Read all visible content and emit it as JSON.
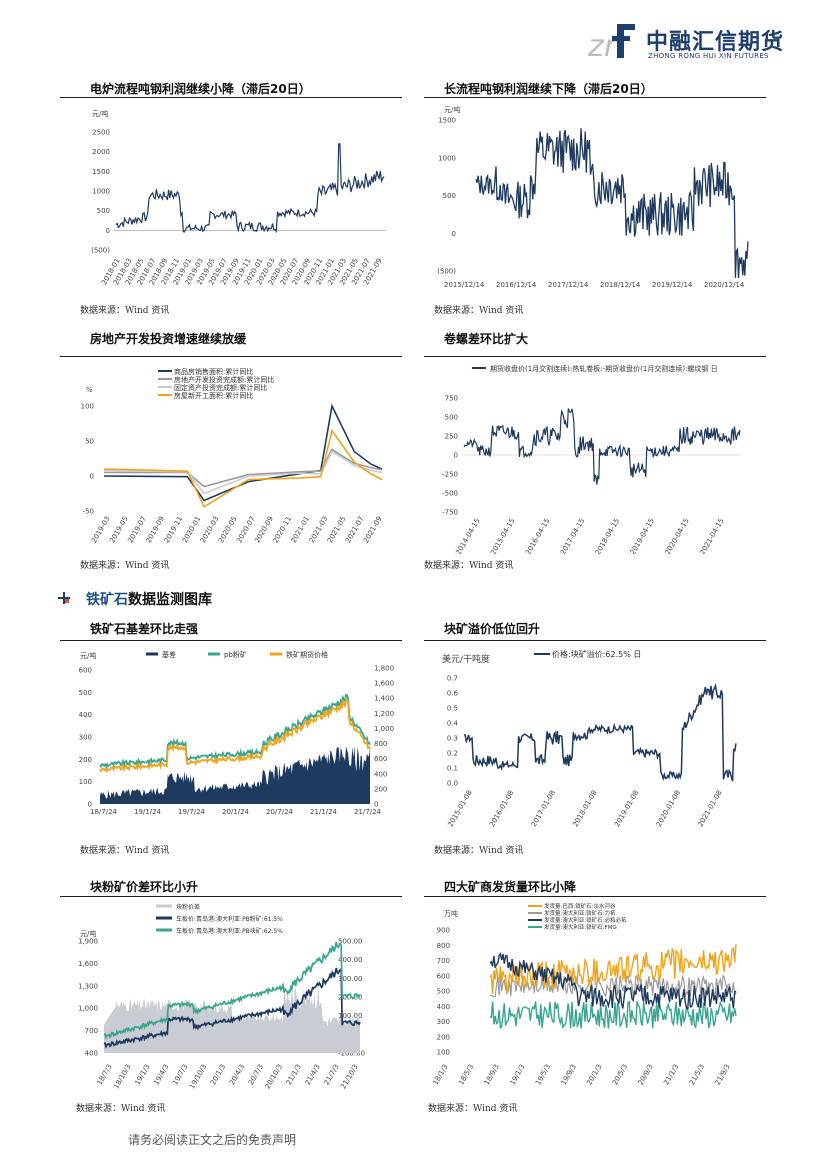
{
  "header": {
    "logo_mark": "zrf",
    "company_cn": "中融汇信期货",
    "company_en": "ZHONG RONG HUI XIN FUTURES"
  },
  "sections": {
    "iron_ore_prefix": "铁矿石",
    "iron_ore_suffix": "数据监测图库"
  },
  "footer": {
    "disclaimer": "请务必阅读正文之后的免责声明"
  },
  "colors": {
    "navy": "#1f3a5f",
    "teal": "#39a58f",
    "orange": "#f0a31c",
    "gray": "#9a9a9a",
    "lightgray": "#c8ccd2",
    "brand": "#1d3f6b"
  },
  "charts": [
    {
      "title": "电炉流程吨钢利润继续小降（滞后20日）",
      "source": "数据来源：Wind 资讯",
      "unit": "元/吨",
      "yticks": [
        "2500",
        "2000",
        "1500",
        "1000",
        "500",
        "0",
        "(500)"
      ],
      "xticks": [
        "2018-01",
        "2018-03",
        "2018-05",
        "2018-07",
        "2018-09",
        "2018-11",
        "2019-01",
        "2019-03",
        "2019-05",
        "2019-07",
        "2019-09",
        "2019-11",
        "2020-01",
        "2020-03",
        "2020-05",
        "2020-07",
        "2020-09",
        "2020-11",
        "2021-01",
        "2021-03",
        "2021-05",
        "2021-07",
        "2021-09"
      ]
    },
    {
      "title": "长流程吨钢利润继续下降（滞后20日）",
      "source": "数据来源：Wind 资讯",
      "unit": "元/吨",
      "yticks": [
        "1500",
        "1000",
        "500",
        "0",
        "(500)"
      ],
      "xticks": [
        "2015/12/14",
        "2016/12/14",
        "2017/12/14",
        "2018/12/14",
        "2019/12/14",
        "2020/12/14"
      ]
    },
    {
      "title": "房地产开发投资增速继续放缓",
      "source": "数据来源：Wind 资讯",
      "unit": "%",
      "yticks": [
        "100",
        "50",
        "0",
        "-50"
      ],
      "legend": [
        "商品房销售面积:累计同比",
        "房地产开发投资完成额:累计同比",
        "固定资产投资完成额:累计同比",
        "房屋新开工面积:累计同比"
      ],
      "xticks": [
        "2019-03",
        "2019-05",
        "2019-07",
        "2019-09",
        "2019-11",
        "2020-01",
        "2020-03",
        "2020-05",
        "2020-07",
        "2020-09",
        "2020-11",
        "2021-01",
        "2021-03",
        "2021-05",
        "2021-07",
        "2021-09"
      ]
    },
    {
      "title": "卷螺差环比扩大",
      "source": "数据来源：Wind 资讯",
      "yticks": [
        "750",
        "500",
        "250",
        "0",
        "-250",
        "-500",
        "-750"
      ],
      "legend": [
        "期货收盘价(1月交割连续):热轧卷板:-期货收盘价(1月交割连续):螺纹钢 日"
      ],
      "xticks": [
        "2014-04-15",
        "2015-04-15",
        "2016-04-15",
        "2017-04-15",
        "2018-04-15",
        "2019-04-15",
        "2020-04-15",
        "2021-04-15"
      ]
    },
    {
      "title": "铁矿石基差环比走强",
      "source": "数据来源：Wind 资讯",
      "unit": "元/吨",
      "legend": [
        "基差",
        "pb粉矿",
        "铁矿期货价格"
      ],
      "yticks": [
        "600",
        "500",
        "400",
        "300",
        "200",
        "100",
        "0"
      ],
      "yticks_right": [
        "1,800",
        "1,600",
        "1,400",
        "1,200",
        "1,000",
        "800",
        "600",
        "400",
        "200",
        "0"
      ],
      "xticks": [
        "18/7/24",
        "19/1/24",
        "19/7/24",
        "20/1/24",
        "20/7/24",
        "21/1/24",
        "21/7/24"
      ]
    },
    {
      "title": "块矿溢价低位回升",
      "source": "数据来源：Wind 资讯",
      "unit": "美元/干吨度",
      "legend": [
        "价格:块矿溢价:62.5% 日"
      ],
      "yticks": [
        "0.7",
        "0.6",
        "0.5",
        "0.4",
        "0.3",
        "0.2",
        "0.1",
        "0.0"
      ],
      "xticks": [
        "2015-01-08",
        "2016-01-08",
        "2017-01-08",
        "2018-01-08",
        "2019-01-08",
        "2020-01-08",
        "2021-01-08"
      ]
    },
    {
      "title": "块粉矿价差环比小升",
      "source": "数据来源：Wind 资讯",
      "unit": "元/吨",
      "legend": [
        "块粉价差",
        "车板价:青岛港:澳大利亚:PB粉矿:61.5%",
        "车板价:青岛港:澳大利亚:PB块矿:62.5%"
      ],
      "yticks": [
        "1,900",
        "1,600",
        "1,300",
        "1,000",
        "700",
        "400"
      ],
      "yticks_right": [
        "500.00",
        "400.00",
        "300.00",
        "200.00",
        "100.00",
        "0.00",
        "-100.00"
      ],
      "xticks": [
        "18/7/3",
        "18/10/3",
        "19/1/3",
        "19/4/3",
        "19/7/3",
        "19/10/3",
        "20/1/3",
        "20/4/3",
        "20/7/3",
        "20/10/3",
        "21/1/3",
        "21/4/3",
        "21/7/3",
        "21/10/3"
      ]
    },
    {
      "title": "四大矿商发货量环比小降",
      "source": "数据来源：Wind 资讯",
      "unit": "万吨",
      "legend": [
        "发货量:巴西:铁矿石:淡水河谷",
        "发货量:澳大利亚:铁矿石:力拓",
        "发货量:澳大利亚:铁矿石:必和必拓",
        "发货量:澳大利亚:铁矿石:FMG"
      ],
      "yticks": [
        "900",
        "800",
        "700",
        "600",
        "500",
        "400",
        "300",
        "200",
        "100"
      ],
      "xticks": [
        "18/1/3",
        "18/5/3",
        "18/9/3",
        "19/1/3",
        "19/5/3",
        "19/9/3",
        "20/1/3",
        "20/5/3",
        "20/9/3",
        "21/1/3",
        "21/5/3",
        "21/9/3"
      ]
    }
  ]
}
